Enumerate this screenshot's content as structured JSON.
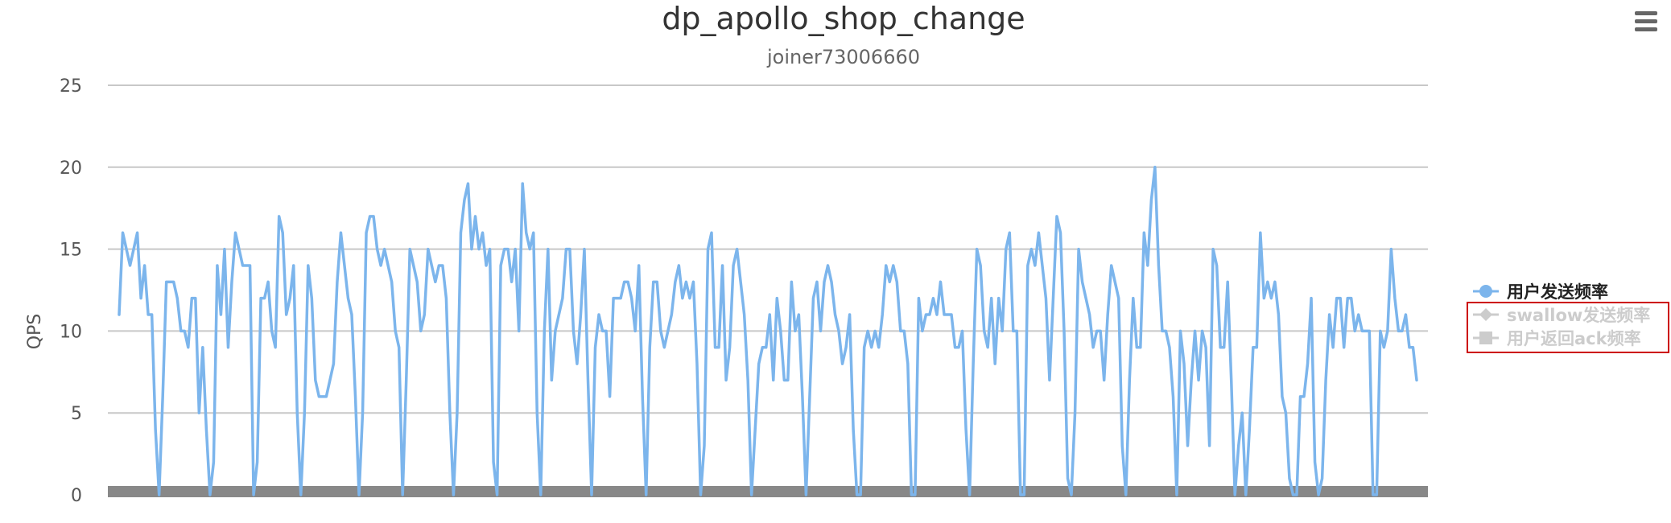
{
  "menu": {
    "icon": "hamburger-menu-icon"
  },
  "legend": {
    "items": [
      {
        "label": "用户发送频率",
        "color": "#7cb5ec",
        "marker": "circle",
        "active": true
      },
      {
        "label": "swallow发送频率",
        "color": "#cccccc",
        "marker": "diamond",
        "active": false
      },
      {
        "label": "用户返回ack频率",
        "color": "#cccccc",
        "marker": "square",
        "active": false
      }
    ],
    "highlight_color": "#cc0000"
  },
  "chart_data": {
    "type": "line",
    "title": "dp_apollo_shop_change",
    "subtitle": "joiner73006660",
    "xlabel": "",
    "ylabel": "QPS",
    "ylim": [
      0,
      25
    ],
    "yticks": [
      0,
      5,
      10,
      15,
      20,
      25
    ],
    "grid": true,
    "legend_position": "right",
    "series": [
      {
        "name": "用户发送频率",
        "color": "#7cb5ec",
        "values": [
          11,
          16,
          15,
          14,
          15,
          16,
          12,
          14,
          11,
          11,
          4,
          0,
          6,
          13,
          13,
          13,
          12,
          10,
          10,
          9,
          12,
          12,
          5,
          9,
          4,
          0,
          2,
          14,
          11,
          15,
          9,
          13,
          16,
          15,
          14,
          14,
          14,
          0,
          2,
          12,
          12,
          13,
          10,
          9,
          17,
          16,
          11,
          12,
          14,
          5,
          0,
          5,
          14,
          12,
          7,
          6,
          6,
          6,
          7,
          8,
          13,
          16,
          14,
          12,
          11,
          6,
          0,
          5,
          16,
          17,
          17,
          15,
          14,
          15,
          14,
          13,
          10,
          9,
          0,
          7,
          15,
          14,
          13,
          10,
          11,
          15,
          14,
          13,
          14,
          14,
          12,
          5,
          0,
          5,
          16,
          18,
          19,
          15,
          17,
          15,
          16,
          14,
          15,
          2,
          0,
          14,
          15,
          15,
          13,
          15,
          10,
          19,
          16,
          15,
          16,
          5,
          0,
          10,
          15,
          7,
          10,
          11,
          12,
          15,
          15,
          10,
          8,
          11,
          15,
          7,
          0,
          9,
          11,
          10,
          10,
          6,
          12,
          12,
          12,
          13,
          13,
          12,
          10,
          14,
          6,
          0,
          9,
          13,
          13,
          10,
          9,
          10,
          11,
          13,
          14,
          12,
          13,
          12,
          13,
          8,
          0,
          3,
          15,
          16,
          9,
          9,
          14,
          7,
          9,
          14,
          15,
          13,
          11,
          7,
          0,
          4,
          8,
          9,
          9,
          11,
          7,
          12,
          10,
          7,
          7,
          13,
          10,
          11,
          6,
          0,
          6,
          12,
          13,
          10,
          13,
          14,
          13,
          11,
          10,
          8,
          9,
          11,
          4,
          0,
          0,
          9,
          10,
          9,
          10,
          9,
          11,
          14,
          13,
          14,
          13,
          10,
          10,
          8,
          0,
          0,
          12,
          10,
          11,
          11,
          12,
          11,
          13,
          11,
          11,
          11,
          9,
          9,
          10,
          4,
          0,
          8,
          15,
          14,
          10,
          9,
          12,
          8,
          12,
          10,
          15,
          16,
          10,
          10,
          0,
          0,
          14,
          15,
          14,
          16,
          14,
          12,
          7,
          12,
          17,
          16,
          10,
          1,
          0,
          5,
          15,
          13,
          12,
          11,
          9,
          10,
          10,
          7,
          11,
          14,
          13,
          12,
          3,
          0,
          7,
          12,
          9,
          9,
          16,
          14,
          18,
          20,
          14,
          10,
          10,
          9,
          6,
          0,
          10,
          8,
          3,
          7,
          10,
          7,
          10,
          9,
          3,
          15,
          14,
          9,
          9,
          13,
          7,
          0,
          3,
          5,
          0,
          4,
          9,
          9,
          16,
          12,
          13,
          12,
          13,
          11,
          6,
          5,
          1,
          0,
          0,
          6,
          6,
          8,
          12,
          2,
          0,
          1,
          7,
          11,
          9,
          12,
          12,
          9,
          12,
          12,
          10,
          11,
          10,
          10,
          10,
          0,
          0,
          10,
          9,
          10,
          15,
          12,
          10,
          10,
          11,
          9,
          9,
          7
        ]
      }
    ]
  }
}
